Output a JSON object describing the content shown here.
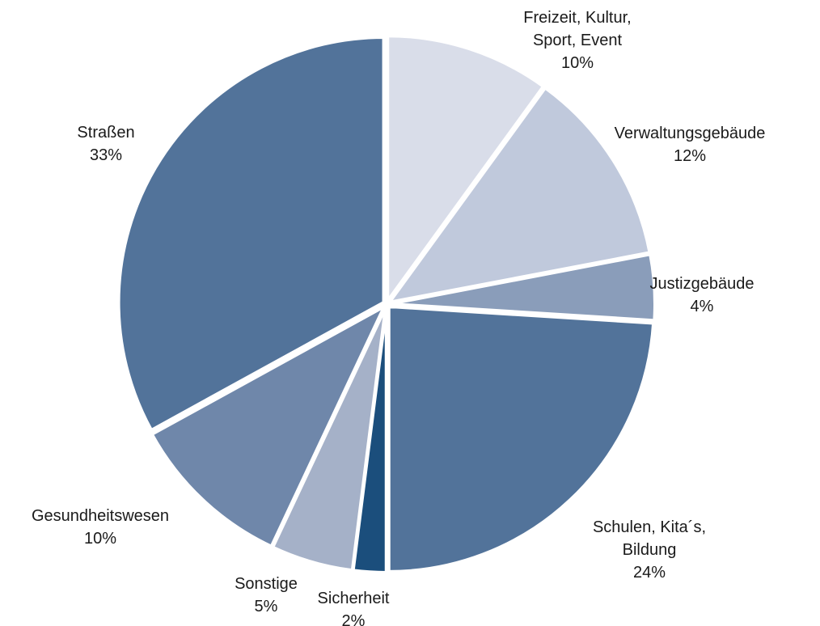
{
  "chart_data": {
    "type": "pie",
    "categories": [
      "Freizeit, Kultur, Sport, Event",
      "Verwaltungsgebäude",
      "Justizgebäude",
      "Schulen, Kita´s, Bildung",
      "Sicherheit",
      "Sonstige",
      "Gesundheitswesen",
      "Straßen"
    ],
    "values": [
      10,
      12,
      4,
      24,
      2,
      5,
      10,
      33
    ],
    "value_labels": [
      "10%",
      "12%",
      "4%",
      "24%",
      "2%",
      "5%",
      "10%",
      "33%"
    ],
    "colors": [
      "#d9dde9",
      "#c0c9dc",
      "#8a9dba",
      "#52739a",
      "#1b4e7c",
      "#a5b1c8",
      "#6f87aa",
      "#52739a"
    ]
  }
}
